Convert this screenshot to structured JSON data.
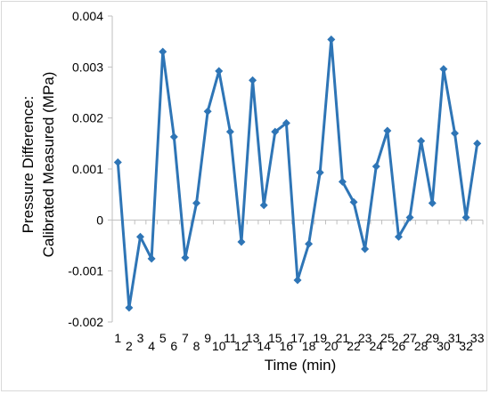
{
  "chart_data": {
    "type": "line",
    "title": "",
    "xlabel": "Time (min)",
    "ylabel_line1": "Pressure Difference:",
    "ylabel_line2": "Calibrated Measured (MPa)",
    "x": [
      1,
      2,
      3,
      4,
      5,
      6,
      7,
      8,
      9,
      10,
      11,
      12,
      13,
      14,
      15,
      16,
      17,
      18,
      19,
      20,
      21,
      22,
      23,
      24,
      25,
      26,
      27,
      28,
      29,
      30,
      31,
      32,
      33
    ],
    "series": [
      {
        "values": [
          0.00113,
          -0.00172,
          -0.00033,
          -0.00076,
          0.0033,
          0.00163,
          -0.00074,
          0.00033,
          0.00213,
          0.00292,
          0.00173,
          -0.00043,
          0.00274,
          0.00029,
          0.00173,
          0.0019,
          -0.00118,
          -0.00047,
          0.00093,
          0.00354,
          0.00075,
          0.00035,
          -0.00057,
          0.00105,
          0.00175,
          -0.00033,
          5e-05,
          0.00155,
          0.00033,
          0.00296,
          0.0017,
          5e-05,
          0.0015
        ],
        "color": "#2e75b6"
      }
    ],
    "ylim": [
      -0.002,
      0.004
    ],
    "yticks": [
      "-0.002",
      "-0.001",
      "0",
      "0.001",
      "0.002",
      "0.003",
      "0.004"
    ],
    "xticks": [
      "1",
      "3",
      "5",
      "7",
      "9",
      "11",
      "13",
      "15",
      "17",
      "19",
      "21",
      "23",
      "25",
      "27",
      "29",
      "31",
      "33"
    ],
    "xticks_odd_offset": [
      "2",
      "4",
      "6",
      "8",
      "10",
      "12",
      "14",
      "16",
      "18",
      "20",
      "22",
      "24",
      "26",
      "28",
      "30",
      "32"
    ],
    "grid": false,
    "legend": "none",
    "marker": "diamond",
    "line_color": "#2e75b6",
    "axis_color": "#bfbfbf"
  }
}
